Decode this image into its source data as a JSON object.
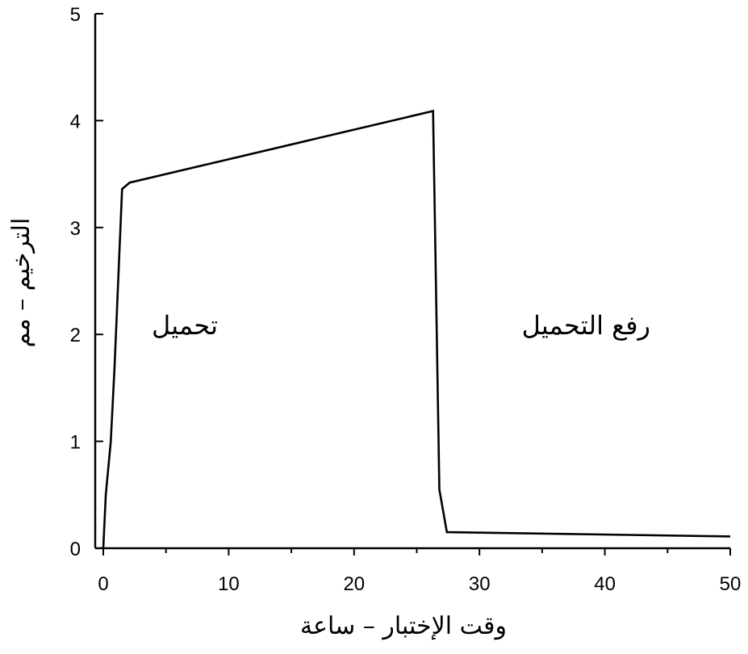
{
  "chart_data": {
    "type": "line",
    "title": "",
    "xlabel": "وقت الإختبار  –  ساعة",
    "ylabel": "الترخيم  –  مم",
    "xlim": [
      0,
      50
    ],
    "ylim": [
      0,
      5
    ],
    "x_ticks": [
      0,
      10,
      20,
      30,
      40,
      50
    ],
    "y_ticks": [
      0,
      1,
      2,
      3,
      4,
      5
    ],
    "x_minor_step": 5,
    "grid": false,
    "series": [
      {
        "color": "#000000",
        "x": [
          0,
          0.2,
          0.6,
          0.9,
          1.5,
          2.1,
          26.3,
          26.8,
          27.4,
          50
        ],
        "y": [
          0,
          0.5,
          1.0,
          1.7,
          3.36,
          3.42,
          4.09,
          0.55,
          0.15,
          0.11
        ]
      }
    ],
    "annotations": [
      {
        "text": "تحميل",
        "x": 6.5,
        "y": 2.0
      },
      {
        "text": "رفع التحميل",
        "x": 38.5,
        "y": 2.0
      }
    ]
  }
}
